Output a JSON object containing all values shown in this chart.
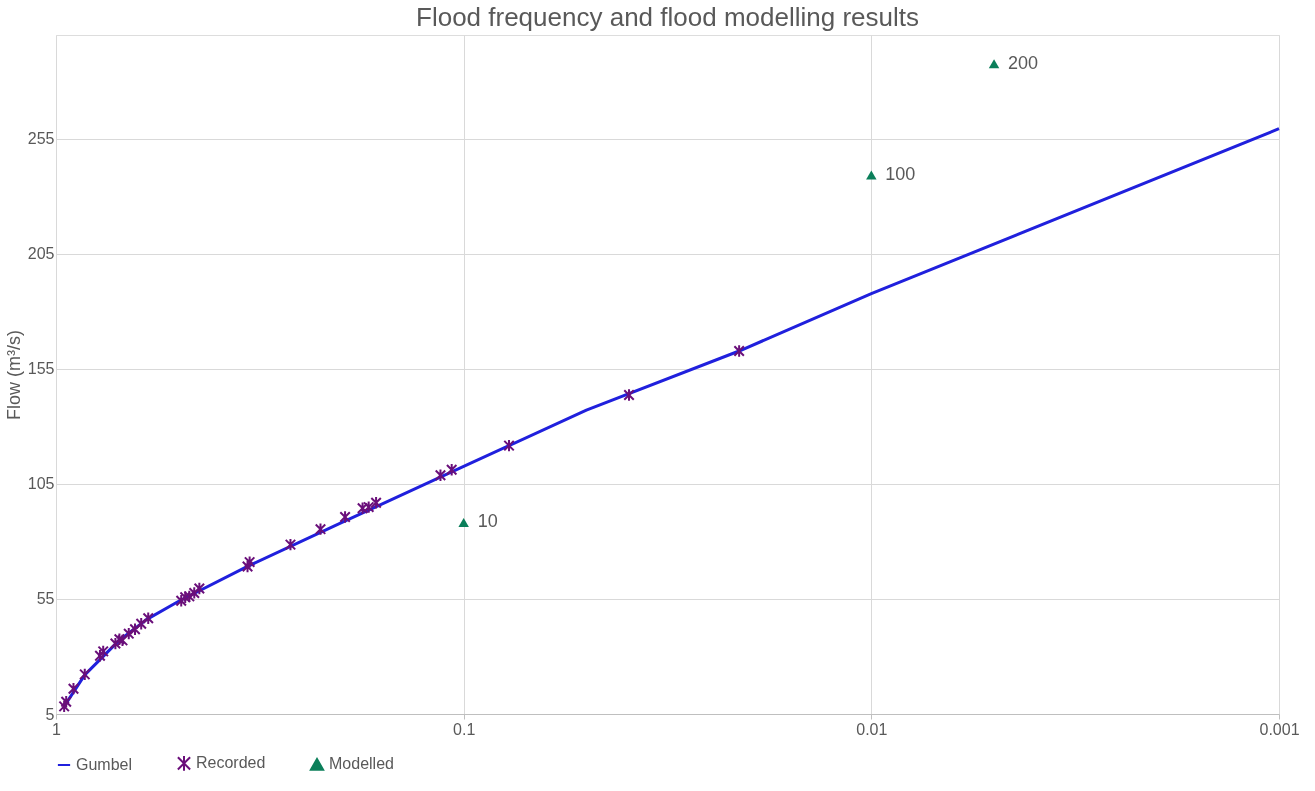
{
  "chart_data": {
    "type": "scatter",
    "title": "Flood frequency and flood modelling results",
    "ylabel": "Flow (m³/s)",
    "xlim": [
      1,
      0.001
    ],
    "xticks": [
      1,
      0.1,
      0.01,
      0.001
    ],
    "ylim": [
      5,
      300
    ],
    "yticks": [
      5,
      55,
      105,
      155,
      205,
      255
    ],
    "log": "x",
    "grid": true,
    "legend": "bottom",
    "series": [
      {
        "name": "Gumbel",
        "type": "line",
        "color": "#2020dd",
        "marker": "none",
        "line_style": "solid",
        "x": [
          0.955,
          0.85,
          0.7,
          0.6,
          0.5,
          0.34,
          0.2,
          0.1,
          0.05,
          0.0211,
          0.01,
          0.001
        ],
        "values": [
          8.3,
          22,
          37,
          46,
          54,
          69,
          88,
          112.6,
          137,
          162.7,
          187.6,
          259.3
        ]
      },
      {
        "name": "Recorded",
        "color": "#6a0f7a",
        "marker": "cross",
        "x": [
          0.955,
          0.944,
          0.906,
          0.85,
          0.78,
          0.766,
          0.715,
          0.699,
          0.687,
          0.663,
          0.64,
          0.618,
          0.594,
          0.493,
          0.482,
          0.471,
          0.458,
          0.445,
          0.339,
          0.335,
          0.266,
          0.2245,
          0.1954,
          0.177,
          0.171,
          0.164,
          0.114,
          0.107,
          0.0774,
          0.0393,
          0.0211
        ],
        "values": [
          8.3,
          10.3,
          16,
          22.2,
          30.3,
          32.2,
          35.6,
          37.5,
          37,
          39.9,
          41.8,
          44.2,
          46.6,
          54.2,
          55.7,
          56.1,
          57.6,
          59.5,
          69.1,
          71,
          78.6,
          85.3,
          90.6,
          94.4,
          94.9,
          96.8,
          108.7,
          111.1,
          121.6,
          143.6,
          162.7
        ]
      },
      {
        "name": "Modelled",
        "color": "#0b7f5a",
        "marker": "triangle",
        "x": [
          0.1,
          0.01,
          0.005
        ],
        "values": [
          88.2,
          239.2,
          287.5
        ]
      }
    ],
    "annotations": [
      {
        "text": "10",
        "x": 0.1,
        "y": 88.2
      },
      {
        "text": "100",
        "x": 0.01,
        "y": 239.2
      },
      {
        "text": "200",
        "x": 0.005,
        "y": 287.5
      }
    ]
  }
}
